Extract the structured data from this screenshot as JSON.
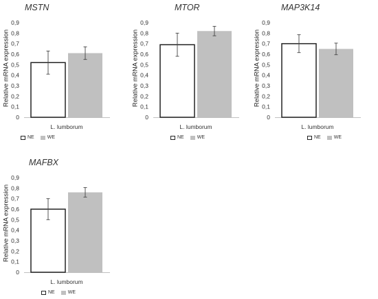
{
  "chart_data": [
    {
      "type": "bar",
      "title": "MSTN",
      "ylabel": "Relative mRNA expression",
      "categories": [
        "L. lumborum"
      ],
      "ylim": [
        0,
        0.9
      ],
      "yticks": [
        "0",
        "0,1",
        "0,2",
        "0,3",
        "0,4",
        "0,5",
        "0,6",
        "0,7",
        "0,8",
        "0,9"
      ],
      "series": [
        {
          "name": "NE",
          "values": [
            0.52
          ],
          "error": [
            0.11
          ]
        },
        {
          "name": "WE",
          "values": [
            0.61
          ],
          "error": [
            0.06
          ]
        }
      ],
      "legend": "bottom"
    },
    {
      "type": "bar",
      "title": "MTOR",
      "ylabel": "Relative mRNA expression",
      "categories": [
        "L. lumborum"
      ],
      "ylim": [
        0,
        0.9
      ],
      "yticks": [
        "0",
        "0,1",
        "0,2",
        "0,3",
        "0,4",
        "0,5",
        "0,6",
        "0,7",
        "0,8",
        "0,9"
      ],
      "series": [
        {
          "name": "NE",
          "values": [
            0.69
          ],
          "error": [
            0.11
          ]
        },
        {
          "name": "WE",
          "values": [
            0.82
          ],
          "error": [
            0.045
          ]
        }
      ],
      "legend": "bottom"
    },
    {
      "type": "bar",
      "title": "MAP3K14",
      "ylabel": "Relative mRNA expression",
      "categories": [
        "L. lumborum"
      ],
      "ylim": [
        0,
        0.9
      ],
      "yticks": [
        "0",
        "0,1",
        "0,2",
        "0,3",
        "0,4",
        "0,5",
        "0,6",
        "0,7",
        "0,8",
        "0,9"
      ],
      "series": [
        {
          "name": "NE",
          "values": [
            0.7
          ],
          "error": [
            0.085
          ]
        },
        {
          "name": "WE",
          "values": [
            0.65
          ],
          "error": [
            0.055
          ]
        }
      ],
      "legend": "bottom"
    },
    {
      "type": "bar",
      "title": "MAFBX",
      "ylabel": "Relative mRNA expression",
      "categories": [
        "L. lumborum"
      ],
      "ylim": [
        0,
        0.9
      ],
      "yticks": [
        "0",
        "0,1",
        "0,2",
        "0,3",
        "0,4",
        "0,5",
        "0,6",
        "0,7",
        "0,8",
        "0,9"
      ],
      "series": [
        {
          "name": "NE",
          "values": [
            0.6
          ],
          "error": [
            0.1
          ]
        },
        {
          "name": "WE",
          "values": [
            0.76
          ],
          "error": [
            0.045
          ]
        }
      ],
      "legend": "bottom"
    }
  ],
  "colors": {
    "NE": "#ffffff",
    "NE_border": "#222222",
    "WE": "#c0c0c0"
  }
}
